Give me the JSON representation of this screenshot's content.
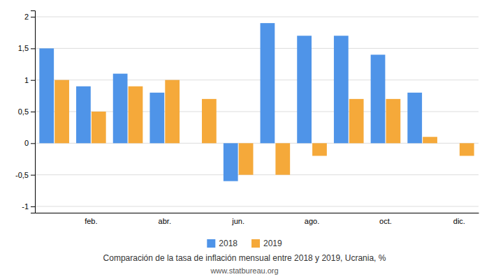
{
  "chart_data": {
    "type": "bar",
    "title": "Comparación de la tasa de inflación mensual entre 2018 y 2019, Ucrania, %",
    "subtitle": "www.statbureau.org",
    "categories": [
      null,
      "feb.",
      null,
      "abr.",
      null,
      "jun.",
      null,
      "ago.",
      null,
      "oct.",
      null,
      "dic."
    ],
    "series": [
      {
        "name": "2018",
        "color": "#4f94e8",
        "values": [
          1.5,
          0.9,
          1.1,
          0.8,
          0.0,
          -0.6,
          1.9,
          1.7,
          1.7,
          1.4,
          0.8,
          null
        ]
      },
      {
        "name": "2019",
        "color": "#f5a93a",
        "values": [
          1.0,
          0.5,
          0.9,
          1.0,
          0.7,
          -0.5,
          -0.5,
          -0.2,
          0.7,
          0.7,
          0.1,
          -0.2
        ]
      }
    ],
    "ylim": [
      -1.1,
      2.1
    ],
    "yticks": [
      -1,
      {
        "value": -0.5,
        "label": "-0,5"
      },
      0,
      {
        "value": 0.5,
        "label": "0,5"
      },
      1,
      {
        "value": 1.5,
        "label": "1,5"
      },
      2
    ],
    "grid": true,
    "legend": "bottom"
  }
}
